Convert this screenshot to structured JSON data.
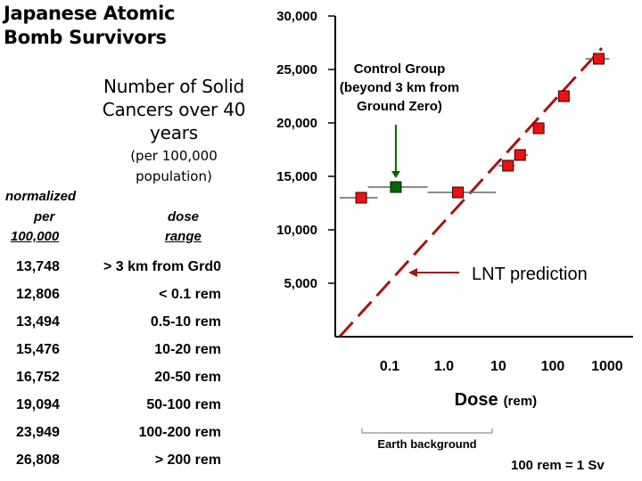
{
  "title": "Japanese Atomic Bomb Survivors",
  "table": {
    "heading": "Number of Solid Cancers over 40 years",
    "note": "(per 100,000 population)",
    "col1_line1": "normalized",
    "col1_line2": "per",
    "col1_line3": "100,000",
    "col2_line1": "dose",
    "col2_line2": "range",
    "rows": [
      {
        "value": "13,748",
        "range": "> 3 km from Grd0"
      },
      {
        "value": "12,806",
        "range": "< 0.1 rem"
      },
      {
        "value": "13,494",
        "range": "0.5-10 rem"
      },
      {
        "value": "15,476",
        "range": "10-20 rem"
      },
      {
        "value": "16,752",
        "range": "20-50 rem"
      },
      {
        "value": "19,094",
        "range": "50-100 rem"
      },
      {
        "value": "23,949",
        "range": "100-200 rem"
      },
      {
        "value": "26,808",
        "range": "> 200 rem"
      }
    ]
  },
  "chart_data": {
    "type": "scatter",
    "x_scale": "log",
    "xlabel": "Dose",
    "xlabel_unit": "(rem)",
    "ylabel": "",
    "xlim": [
      0.01,
      3000
    ],
    "ylim": [
      0,
      30000
    ],
    "x_ticks": [
      {
        "value": 0.1,
        "label": "0.1"
      },
      {
        "value": 1,
        "label": "1.0"
      },
      {
        "value": 10,
        "label": "10"
      },
      {
        "value": 100,
        "label": "100"
      },
      {
        "value": 1000,
        "label": "1000"
      }
    ],
    "y_ticks": [
      {
        "value": 5000,
        "label": "5,000"
      },
      {
        "value": 10000,
        "label": "10,000"
      },
      {
        "value": 15000,
        "label": "15,000"
      },
      {
        "value": 20000,
        "label": "20,000"
      },
      {
        "value": 25000,
        "label": "25,000"
      },
      {
        "value": 30000,
        "label": "30,000"
      }
    ],
    "control": {
      "x": 0.13,
      "y": 14000,
      "x_range": [
        0.04,
        0.5
      ],
      "color": "#006600"
    },
    "points": [
      {
        "x": 0.03,
        "y": 13000,
        "x_range": [
          0.012,
          0.06
        ]
      },
      {
        "x": 1.8,
        "y": 13500,
        "x_range": [
          0.5,
          9
        ]
      },
      {
        "x": 15,
        "y": 16000,
        "x_range": [
          10,
          20
        ]
      },
      {
        "x": 25,
        "y": 17000,
        "x_range": [
          20,
          35
        ]
      },
      {
        "x": 55,
        "y": 19500,
        "x_range": [
          45,
          70
        ]
      },
      {
        "x": 160,
        "y": 22500,
        "x_range": [
          130,
          200
        ]
      },
      {
        "x": 700,
        "y": 26000,
        "x_range": [
          400,
          1100
        ]
      }
    ],
    "point_color": "#ee1111",
    "lnt_line": {
      "x_start": 0.012,
      "y_start": 0,
      "x_end": 800,
      "y_end": 27000,
      "color": "#a31515"
    },
    "annotations": {
      "control_label": [
        "Control Group",
        "(beyond 3 km from",
        "Ground Zero)"
      ],
      "lnt_label": "LNT prediction",
      "earth_background": "Earth background"
    }
  },
  "footnote": "100 rem = 1 Sv"
}
